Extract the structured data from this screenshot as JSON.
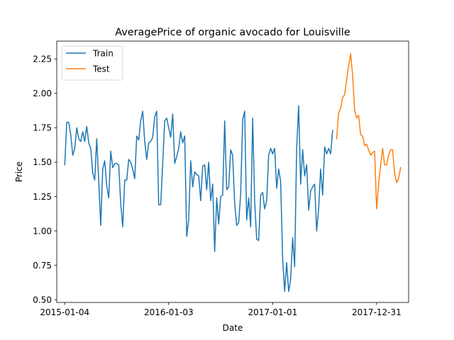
{
  "chart_data": {
    "type": "line",
    "title": "AveragePrice of organic avocado for Louisville",
    "xlabel": "Date",
    "ylabel": "Price",
    "x_start_date": "2015-01-04",
    "x_frequency": "weekly",
    "xlim": [
      "2014-12-07",
      "2018-04-22"
    ],
    "ylim": [
      0.48,
      2.38
    ],
    "x_ticks": [
      "2015-01-04",
      "2016-01-03",
      "2017-01-01",
      "2017-12-31"
    ],
    "y_ticks": [
      "0.50",
      "0.75",
      "1.00",
      "1.25",
      "1.50",
      "1.75",
      "2.00",
      "2.25"
    ],
    "grid": false,
    "legend_position": "top-left",
    "series": [
      {
        "name": "Train",
        "color": "#1f77b4",
        "start_date": "2015-01-04",
        "values": [
          1.48,
          1.79,
          1.79,
          1.7,
          1.55,
          1.6,
          1.75,
          1.67,
          1.65,
          1.72,
          1.65,
          1.76,
          1.64,
          1.6,
          1.42,
          1.37,
          1.67,
          1.36,
          1.04,
          1.45,
          1.51,
          1.33,
          1.24,
          1.58,
          1.46,
          1.49,
          1.49,
          1.48,
          1.2,
          1.03,
          1.37,
          1.37,
          1.52,
          1.5,
          1.45,
          1.38,
          1.69,
          1.66,
          1.8,
          1.87,
          1.65,
          1.52,
          1.64,
          1.65,
          1.68,
          1.83,
          1.87,
          1.19,
          1.19,
          1.49,
          1.8,
          1.82,
          1.75,
          1.68,
          1.85,
          1.49,
          1.54,
          1.6,
          1.72,
          1.64,
          1.69,
          0.96,
          1.08,
          1.51,
          1.32,
          1.43,
          1.41,
          1.4,
          1.22,
          1.47,
          1.48,
          1.3,
          1.5,
          1.22,
          1.34,
          0.85,
          1.24,
          1.05,
          1.25,
          1.26,
          1.8,
          1.3,
          1.32,
          1.59,
          1.55,
          1.2,
          1.04,
          1.06,
          1.27,
          1.81,
          1.87,
          1.08,
          1.24,
          1.03,
          1.82,
          1.22,
          0.94,
          0.93,
          1.26,
          1.28,
          1.16,
          1.22,
          1.55,
          1.6,
          1.56,
          1.6,
          1.31,
          1.45,
          1.36,
          0.8,
          0.56,
          0.77,
          0.56,
          0.65,
          0.95,
          0.74,
          1.6,
          1.91,
          1.34,
          1.59,
          1.4,
          1.48,
          1.15,
          1.29,
          1.32,
          1.34,
          1.0,
          1.16,
          1.45,
          1.26,
          1.61,
          1.56,
          1.6,
          1.56,
          1.73
        ]
      },
      {
        "name": "Test",
        "color": "#ff7f0e",
        "start_date": "2017-08-13",
        "values": [
          1.67,
          1.86,
          1.89,
          1.97,
          1.99,
          2.1,
          2.2,
          2.29,
          2.13,
          1.88,
          1.82,
          1.84,
          1.7,
          1.69,
          1.62,
          1.63,
          1.59,
          1.55,
          1.57,
          1.58,
          1.16,
          1.34,
          1.48,
          1.6,
          1.48,
          1.48,
          1.55,
          1.59,
          1.59,
          1.42,
          1.35,
          1.38,
          1.46
        ]
      }
    ]
  }
}
